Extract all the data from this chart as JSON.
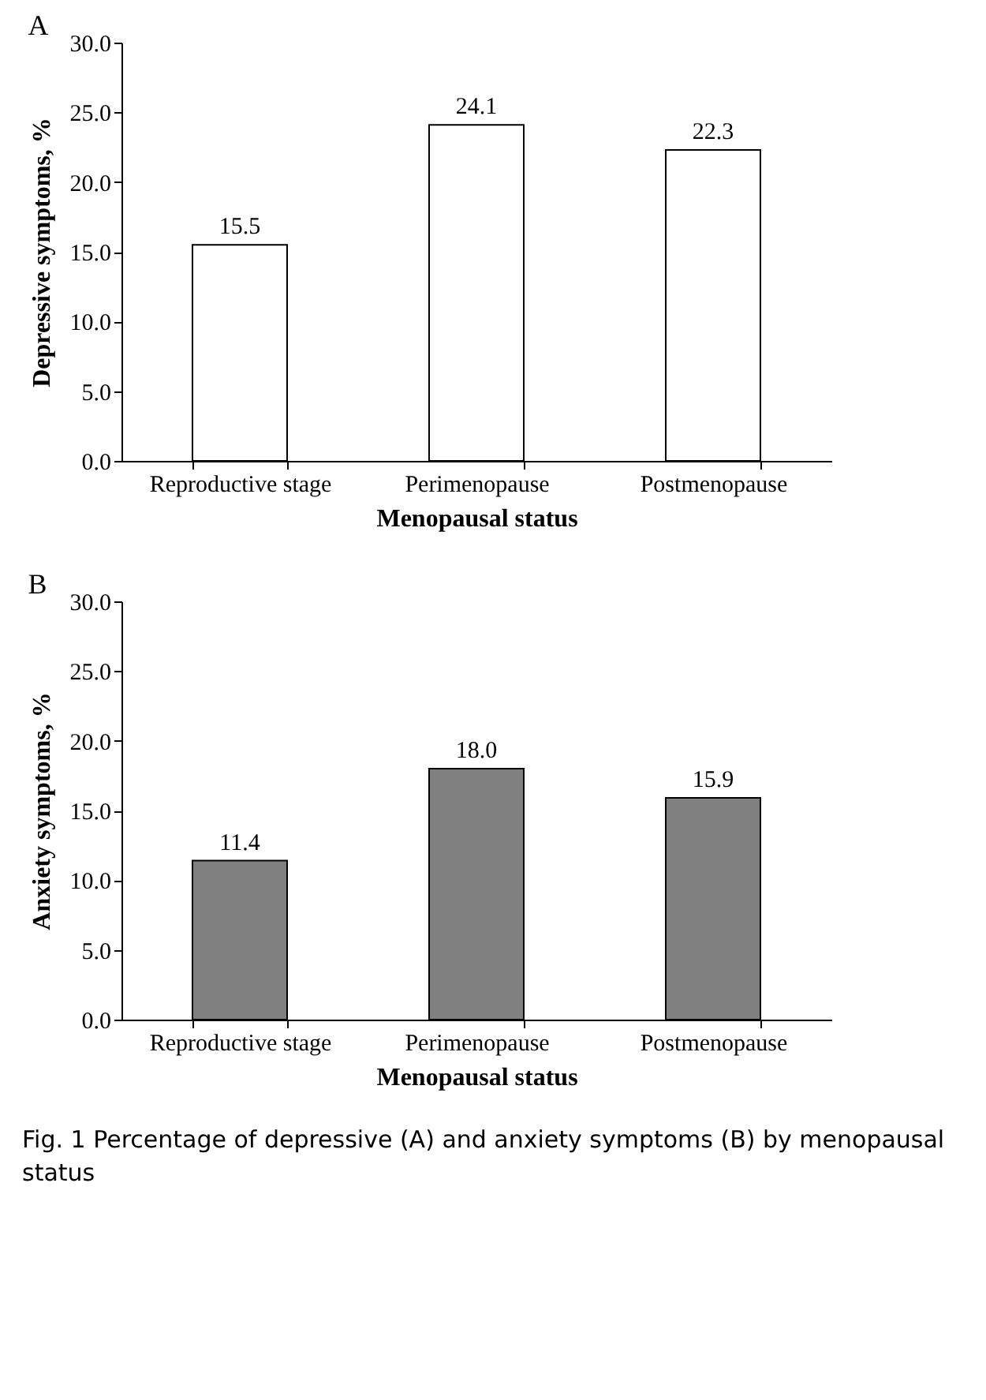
{
  "chart_data": [
    {
      "type": "bar",
      "title": "A",
      "xlabel": "Menopausal status",
      "ylabel": "Depressive symptoms, %",
      "categories": [
        "Reproductive stage",
        "Perimenopause",
        "Postmenopause"
      ],
      "series": [
        {
          "color": "#ffffff",
          "values": [
            15.5,
            24.1,
            22.3
          ],
          "value_labels": [
            "15.5",
            "24.1",
            "22.3"
          ]
        }
      ],
      "ylim": [
        0,
        30
      ],
      "yticks": [
        {
          "value": 0,
          "label": "0.0"
        },
        {
          "value": 5,
          "label": "5.0"
        },
        {
          "value": 10,
          "label": "10.0"
        },
        {
          "value": 15,
          "label": "15.0"
        },
        {
          "value": 20,
          "label": "20.0"
        },
        {
          "value": 25,
          "label": "25.0"
        },
        {
          "value": 30,
          "label": "30.0"
        }
      ]
    },
    {
      "type": "bar",
      "title": "B",
      "xlabel": "Menopausal status",
      "ylabel": "Anxiety symptoms, %",
      "categories": [
        "Reproductive stage",
        "Perimenopause",
        "Postmenopause"
      ],
      "series": [
        {
          "color": "#808080",
          "values": [
            11.4,
            18.0,
            15.9
          ],
          "value_labels": [
            "11.4",
            "18.0",
            "15.9"
          ]
        }
      ],
      "ylim": [
        0,
        30
      ],
      "yticks": [
        {
          "value": 0,
          "label": "0.0"
        },
        {
          "value": 5,
          "label": "5.0"
        },
        {
          "value": 10,
          "label": "10.0"
        },
        {
          "value": 15,
          "label": "15.0"
        },
        {
          "value": 20,
          "label": "20.0"
        },
        {
          "value": 25,
          "label": "25.0"
        },
        {
          "value": 30,
          "label": "30.0"
        }
      ],
      "annotations": [
        "Fig. 1 Percentage of depressive (A) and anxiety symptoms (B) by menopausal status"
      ]
    }
  ]
}
